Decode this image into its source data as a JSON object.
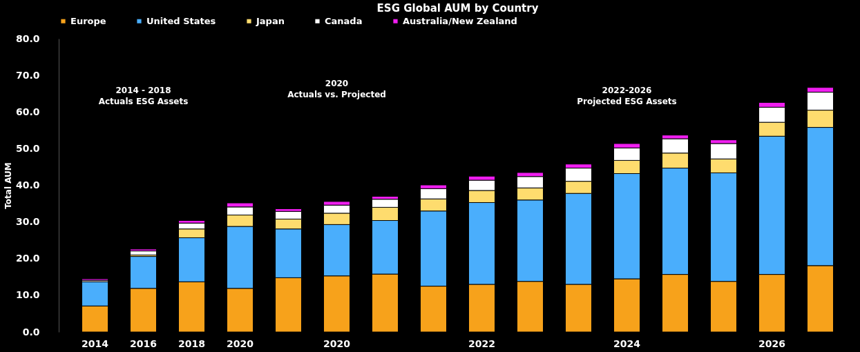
{
  "chart_data": {
    "type": "bar",
    "stacked": true,
    "title": "ESG Global AUM by Country",
    "ylabel": "Total AUM",
    "categories": [
      "2014",
      "2016",
      "2018",
      "2020",
      null,
      "2020",
      null,
      null,
      "2022",
      null,
      null,
      "2024",
      null,
      null,
      "2026",
      null
    ],
    "series": [
      {
        "name": "Europe",
        "color": "#f7a21b",
        "values": [
          7.1,
          11.9,
          13.7,
          11.9,
          14.8,
          15.3,
          15.8,
          12.5,
          13.0,
          13.8,
          13.0,
          14.5,
          15.7,
          13.8,
          15.7,
          18.1
        ]
      },
      {
        "name": "United States",
        "color": "#4aaefc",
        "values": [
          6.6,
          8.7,
          12.0,
          16.9,
          13.3,
          14.0,
          14.6,
          20.5,
          22.3,
          22.2,
          24.8,
          28.7,
          29.0,
          29.6,
          37.7,
          37.7
        ]
      },
      {
        "name": "Japan",
        "color": "#fedc6e",
        "values": [
          null,
          0.4,
          2.4,
          3.1,
          2.7,
          3.1,
          3.6,
          3.3,
          3.3,
          3.3,
          3.3,
          3.6,
          4.1,
          3.8,
          3.8,
          4.7
        ]
      },
      {
        "name": "Canada",
        "color": "#ffffff",
        "values": [
          0.4,
          1.1,
          1.6,
          2.2,
          2.1,
          2.2,
          2.2,
          2.8,
          2.8,
          3.1,
          3.6,
          3.4,
          3.9,
          4.2,
          4.1,
          4.9
        ]
      },
      {
        "name": "Australia/New Zealand",
        "color": "#f01ef0",
        "values": [
          0.4,
          0.5,
          0.7,
          1.1,
          0.7,
          1.0,
          0.8,
          1.0,
          1.1,
          1.1,
          1.1,
          1.2,
          1.0,
          1.0,
          1.3,
          1.3
        ]
      }
    ],
    "ylim": [
      0,
      80
    ],
    "yticks": [
      {
        "value": 0,
        "label": "0.0"
      },
      {
        "value": 10,
        "label": "10.0"
      },
      {
        "value": 20,
        "label": "20.0"
      },
      {
        "value": 30,
        "label": "30.0"
      },
      {
        "value": 40,
        "label": "40.0"
      },
      {
        "value": 50,
        "label": "50.0"
      },
      {
        "value": 60,
        "label": "60.0"
      },
      {
        "value": 70,
        "label": "70.0"
      },
      {
        "value": 80,
        "label": "80.0"
      }
    ],
    "grid": false,
    "legend": "top",
    "annotations": [
      "2014 - 2018\nActuals ESG Assets",
      "2020\nActuals vs. Projected",
      "2022-2026\nProjected ESG Assets"
    ]
  }
}
